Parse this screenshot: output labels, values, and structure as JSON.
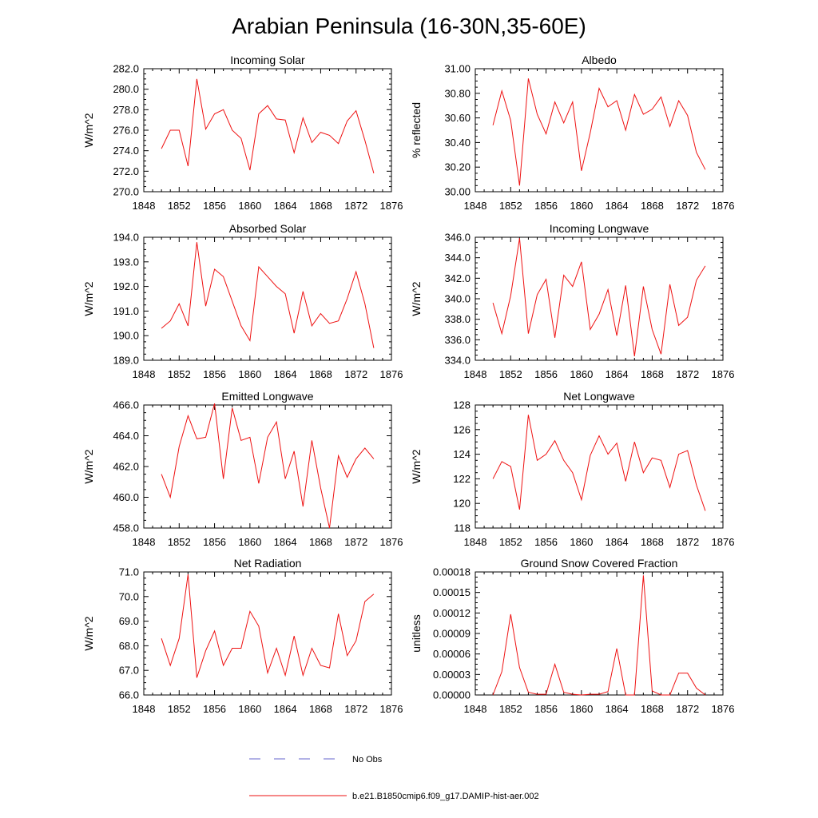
{
  "title": "Arabian Peninsula (16-30N,35-60E)",
  "colors": {
    "model": "#ee1111",
    "obs": "#6666cc",
    "axis": "#000000"
  },
  "legend": {
    "position": "bottom-center",
    "entries": [
      {
        "label": "No Obs",
        "style": "dashed",
        "color": "#6666cc"
      },
      {
        "label": "b.e21.B1850cmip6.f09_g17.DAMIP-hist-aer.002",
        "style": "solid",
        "color": "#ee1111"
      }
    ]
  },
  "chart_data": [
    {
      "type": "line",
      "title": "Incoming Solar",
      "xlabel": "",
      "ylabel": "W/m^2",
      "xlim": [
        1848,
        1876
      ],
      "ylim": [
        270,
        282
      ],
      "xticks": [
        1848,
        1852,
        1856,
        1860,
        1864,
        1868,
        1872,
        1876
      ],
      "xtick_labels": [
        "1848",
        "1852",
        "1856",
        "1860",
        "1864",
        "1868",
        "1872",
        "1876"
      ],
      "yticks": [
        270,
        272,
        274,
        276,
        278,
        280,
        282
      ],
      "ytick_labels": [
        "270.0",
        "272.0",
        "274.0",
        "276.0",
        "278.0",
        "280.0",
        "282.0"
      ],
      "x": [
        1850,
        1851,
        1852,
        1853,
        1854,
        1855,
        1856,
        1857,
        1858,
        1859,
        1860,
        1861,
        1862,
        1863,
        1864,
        1865,
        1866,
        1867,
        1868,
        1869,
        1870,
        1871,
        1872,
        1873,
        1874
      ],
      "series": [
        {
          "values": [
            274.2,
            276.0,
            276.0,
            272.5,
            281.0,
            276.1,
            277.6,
            278.0,
            276.0,
            275.2,
            272.1,
            277.6,
            278.4,
            277.1,
            277.0,
            273.8,
            277.2,
            274.8,
            275.8,
            275.5,
            274.7,
            276.9,
            277.9,
            275.0,
            271.8
          ]
        }
      ]
    },
    {
      "type": "line",
      "title": "Albedo",
      "xlabel": "",
      "ylabel": "% reflected",
      "xlim": [
        1848,
        1876
      ],
      "ylim": [
        30.0,
        31.0
      ],
      "xticks": [
        1848,
        1852,
        1856,
        1860,
        1864,
        1868,
        1872,
        1876
      ],
      "xtick_labels": [
        "1848",
        "1852",
        "1856",
        "1860",
        "1864",
        "1868",
        "1872",
        "1876"
      ],
      "yticks": [
        30.0,
        30.2,
        30.4,
        30.6,
        30.8,
        31.0
      ],
      "ytick_labels": [
        "30.00",
        "30.20",
        "30.40",
        "30.60",
        "30.80",
        "31.00"
      ],
      "x": [
        1850,
        1851,
        1852,
        1853,
        1854,
        1855,
        1856,
        1857,
        1858,
        1859,
        1860,
        1861,
        1862,
        1863,
        1864,
        1865,
        1866,
        1867,
        1868,
        1869,
        1870,
        1871,
        1872,
        1873,
        1874
      ],
      "series": [
        {
          "values": [
            30.54,
            30.82,
            30.58,
            30.05,
            30.92,
            30.63,
            30.47,
            30.73,
            30.56,
            30.73,
            30.17,
            30.48,
            30.84,
            30.69,
            30.74,
            30.5,
            30.79,
            30.63,
            30.67,
            30.77,
            30.53,
            30.74,
            30.62,
            30.32,
            30.18
          ]
        }
      ]
    },
    {
      "type": "line",
      "title": "Absorbed Solar",
      "xlabel": "",
      "ylabel": "W/m^2",
      "xlim": [
        1848,
        1876
      ],
      "ylim": [
        189,
        194
      ],
      "xticks": [
        1848,
        1852,
        1856,
        1860,
        1864,
        1868,
        1872,
        1876
      ],
      "xtick_labels": [
        "1848",
        "1852",
        "1856",
        "1860",
        "1864",
        "1868",
        "1872",
        "1876"
      ],
      "yticks": [
        189,
        190,
        191,
        192,
        193,
        194
      ],
      "ytick_labels": [
        "189.0",
        "190.0",
        "191.0",
        "192.0",
        "193.0",
        "194.0"
      ],
      "x": [
        1850,
        1851,
        1852,
        1853,
        1854,
        1855,
        1856,
        1857,
        1858,
        1859,
        1860,
        1861,
        1862,
        1863,
        1864,
        1865,
        1866,
        1867,
        1868,
        1869,
        1870,
        1871,
        1872,
        1873,
        1874
      ],
      "series": [
        {
          "values": [
            190.3,
            190.6,
            191.3,
            190.4,
            193.8,
            191.2,
            192.7,
            192.4,
            191.4,
            190.4,
            189.8,
            192.8,
            192.4,
            192.0,
            191.7,
            190.1,
            191.8,
            190.4,
            190.9,
            190.5,
            190.6,
            191.5,
            192.6,
            191.3,
            189.5
          ]
        }
      ]
    },
    {
      "type": "line",
      "title": "Incoming Longwave",
      "xlabel": "",
      "ylabel": "W/m^2",
      "xlim": [
        1848,
        1876
      ],
      "ylim": [
        334,
        346
      ],
      "xticks": [
        1848,
        1852,
        1856,
        1860,
        1864,
        1868,
        1872,
        1876
      ],
      "xtick_labels": [
        "1848",
        "1852",
        "1856",
        "1860",
        "1864",
        "1868",
        "1872",
        "1876"
      ],
      "yticks": [
        334,
        336,
        338,
        340,
        342,
        344,
        346
      ],
      "ytick_labels": [
        "334.0",
        "336.0",
        "338.0",
        "340.0",
        "342.0",
        "344.0",
        "346.0"
      ],
      "x": [
        1850,
        1851,
        1852,
        1853,
        1854,
        1855,
        1856,
        1857,
        1858,
        1859,
        1860,
        1861,
        1862,
        1863,
        1864,
        1865,
        1866,
        1867,
        1868,
        1869,
        1870,
        1871,
        1872,
        1873,
        1874
      ],
      "series": [
        {
          "values": [
            339.6,
            336.6,
            340.3,
            345.9,
            336.6,
            340.4,
            341.9,
            336.2,
            342.3,
            341.2,
            343.6,
            337.0,
            338.5,
            340.9,
            336.4,
            341.3,
            334.4,
            341.2,
            337.0,
            334.6,
            341.4,
            337.4,
            338.2,
            341.8,
            343.2
          ]
        }
      ]
    },
    {
      "type": "line",
      "title": "Emitted Longwave",
      "xlabel": "",
      "ylabel": "W/m^2",
      "xlim": [
        1848,
        1876
      ],
      "ylim": [
        458,
        466
      ],
      "xticks": [
        1848,
        1852,
        1856,
        1860,
        1864,
        1868,
        1872,
        1876
      ],
      "xtick_labels": [
        "1848",
        "1852",
        "1856",
        "1860",
        "1864",
        "1868",
        "1872",
        "1876"
      ],
      "yticks": [
        458,
        460,
        462,
        464,
        466
      ],
      "ytick_labels": [
        "458.0",
        "460.0",
        "462.0",
        "464.0",
        "466.0"
      ],
      "x": [
        1850,
        1851,
        1852,
        1853,
        1854,
        1855,
        1856,
        1857,
        1858,
        1859,
        1860,
        1861,
        1862,
        1863,
        1864,
        1865,
        1866,
        1867,
        1868,
        1869,
        1870,
        1871,
        1872,
        1873,
        1874
      ],
      "series": [
        {
          "values": [
            461.5,
            460.0,
            463.3,
            465.3,
            463.8,
            463.9,
            466.1,
            461.2,
            465.8,
            463.7,
            463.9,
            460.9,
            463.9,
            464.9,
            461.2,
            463.0,
            459.4,
            463.7,
            460.6,
            458.0,
            462.7,
            461.3,
            462.5,
            463.2,
            462.5
          ]
        }
      ]
    },
    {
      "type": "line",
      "title": "Net Longwave",
      "xlabel": "",
      "ylabel": "W/m^2",
      "xlim": [
        1848,
        1876
      ],
      "ylim": [
        118,
        128
      ],
      "xticks": [
        1848,
        1852,
        1856,
        1860,
        1864,
        1868,
        1872,
        1876
      ],
      "xtick_labels": [
        "1848",
        "1852",
        "1856",
        "1860",
        "1864",
        "1868",
        "1872",
        "1876"
      ],
      "yticks": [
        118,
        120,
        122,
        124,
        126,
        128
      ],
      "ytick_labels": [
        "118",
        "120",
        "122",
        "124",
        "126",
        "128"
      ],
      "x": [
        1850,
        1851,
        1852,
        1853,
        1854,
        1855,
        1856,
        1857,
        1858,
        1859,
        1860,
        1861,
        1862,
        1863,
        1864,
        1865,
        1866,
        1867,
        1868,
        1869,
        1870,
        1871,
        1872,
        1873,
        1874
      ],
      "series": [
        {
          "values": [
            122.0,
            123.4,
            123.0,
            119.5,
            127.2,
            123.5,
            124.0,
            125.1,
            123.5,
            122.5,
            120.3,
            123.9,
            125.5,
            124.0,
            124.9,
            121.8,
            125.0,
            122.5,
            123.7,
            123.5,
            121.3,
            124.0,
            124.3,
            121.5,
            119.4
          ]
        }
      ]
    },
    {
      "type": "line",
      "title": "Net Radiation",
      "xlabel": "",
      "ylabel": "W/m^2",
      "xlim": [
        1848,
        1876
      ],
      "ylim": [
        66,
        71
      ],
      "xticks": [
        1848,
        1852,
        1856,
        1860,
        1864,
        1868,
        1872,
        1876
      ],
      "xtick_labels": [
        "1848",
        "1852",
        "1856",
        "1860",
        "1864",
        "1868",
        "1872",
        "1876"
      ],
      "yticks": [
        66,
        67,
        68,
        69,
        70,
        71
      ],
      "ytick_labels": [
        "66.0",
        "67.0",
        "68.0",
        "69.0",
        "70.0",
        "71.0"
      ],
      "x": [
        1850,
        1851,
        1852,
        1853,
        1854,
        1855,
        1856,
        1857,
        1858,
        1859,
        1860,
        1861,
        1862,
        1863,
        1864,
        1865,
        1866,
        1867,
        1868,
        1869,
        1870,
        1871,
        1872,
        1873,
        1874
      ],
      "series": [
        {
          "values": [
            68.3,
            67.2,
            68.3,
            70.9,
            66.7,
            67.8,
            68.6,
            67.2,
            67.9,
            67.9,
            69.4,
            68.8,
            66.9,
            67.9,
            66.8,
            68.4,
            66.8,
            67.9,
            67.2,
            67.1,
            69.3,
            67.6,
            68.2,
            69.8,
            70.1
          ]
        }
      ]
    },
    {
      "type": "line",
      "title": "Ground Snow Covered Fraction",
      "xlabel": "",
      "ylabel": "unitless",
      "xlim": [
        1848,
        1876
      ],
      "ylim": [
        0.0,
        0.00018
      ],
      "xticks": [
        1848,
        1852,
        1856,
        1860,
        1864,
        1868,
        1872,
        1876
      ],
      "xtick_labels": [
        "1848",
        "1852",
        "1856",
        "1860",
        "1864",
        "1868",
        "1872",
        "1876"
      ],
      "yticks": [
        0.0,
        3e-05,
        6e-05,
        9e-05,
        0.00012,
        0.00015,
        0.00018
      ],
      "ytick_labels": [
        "0.00000",
        "0.00003",
        "0.00006",
        "0.00009",
        "0.00012",
        "0.00015",
        "0.00018"
      ],
      "x": [
        1850,
        1851,
        1852,
        1853,
        1854,
        1855,
        1856,
        1857,
        1858,
        1859,
        1860,
        1861,
        1862,
        1863,
        1864,
        1865,
        1866,
        1867,
        1868,
        1869,
        1870,
        1871,
        1872,
        1873,
        1874
      ],
      "series": [
        {
          "values": [
            0.0,
            3.4e-05,
            0.000118,
            4e-05,
            4e-06,
            1e-06,
            1e-06,
            4.5e-05,
            4e-06,
            1e-06,
            0.0,
            1e-06,
            1e-06,
            5e-06,
            6.8e-05,
            0.0,
            0.0,
            0.000175,
            6e-06,
            0.0,
            0.0,
            3.2e-05,
            3.2e-05,
            1e-05,
            0.0
          ]
        }
      ]
    }
  ]
}
